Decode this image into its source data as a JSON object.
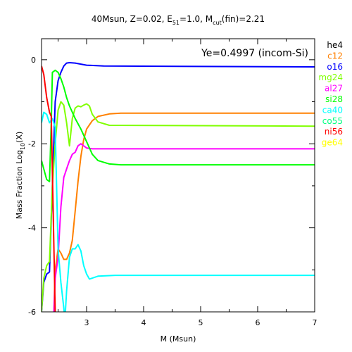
{
  "chart_data": {
    "type": "line",
    "title": {
      "base": "40Msun, Z=0.02, E",
      "sub1": "51",
      "mid": "=1.0, M",
      "sub2": "cut",
      "end": "(fin)=2.21"
    },
    "xlabel": "M (Msun)",
    "ylabel": {
      "base": "Mass Fraction Log",
      "sub": "10",
      "end": "(X)"
    },
    "annotation": "Ye=0.4997 (incom-Si)",
    "xlim": [
      2.21,
      7
    ],
    "ylim": [
      -6,
      0.5
    ],
    "x_ticks": [
      3,
      4,
      5,
      6,
      7
    ],
    "y_ticks": [
      0,
      -2,
      -4,
      -6
    ],
    "legend_position": "right-outside",
    "series": [
      {
        "name": "he4",
        "color": "#000000",
        "points": []
      },
      {
        "name": "c12",
        "color": "#ff8000",
        "points": [
          [
            2.4,
            -7.0
          ],
          [
            2.45,
            -5.0
          ],
          [
            2.5,
            -4.5
          ],
          [
            2.55,
            -4.6
          ],
          [
            2.6,
            -4.75
          ],
          [
            2.65,
            -4.75
          ],
          [
            2.7,
            -4.6
          ],
          [
            2.75,
            -4.3
          ],
          [
            2.8,
            -3.6
          ],
          [
            2.85,
            -2.9
          ],
          [
            2.9,
            -2.3
          ],
          [
            2.95,
            -1.9
          ],
          [
            3.0,
            -1.65
          ],
          [
            3.1,
            -1.45
          ],
          [
            3.2,
            -1.35
          ],
          [
            3.4,
            -1.29
          ],
          [
            3.6,
            -1.27
          ],
          [
            7.0,
            -1.27
          ]
        ]
      },
      {
        "name": "o16",
        "color": "#0000ff",
        "points": [
          [
            2.21,
            -6.0
          ],
          [
            2.25,
            -5.3
          ],
          [
            2.3,
            -5.1
          ],
          [
            2.35,
            -5.05
          ],
          [
            2.4,
            -3.0
          ],
          [
            2.45,
            -1.0
          ],
          [
            2.5,
            -0.5
          ],
          [
            2.55,
            -0.3
          ],
          [
            2.6,
            -0.15
          ],
          [
            2.65,
            -0.08
          ],
          [
            2.7,
            -0.07
          ],
          [
            2.8,
            -0.08
          ],
          [
            3.0,
            -0.13
          ],
          [
            3.3,
            -0.15
          ],
          [
            7.0,
            -0.17
          ]
        ]
      },
      {
        "name": "mg24",
        "color": "#80ff00",
        "points": [
          [
            2.21,
            -6.0
          ],
          [
            2.25,
            -5.2
          ],
          [
            2.3,
            -4.9
          ],
          [
            2.35,
            -4.8
          ],
          [
            2.4,
            -3.0
          ],
          [
            2.45,
            -2.0
          ],
          [
            2.5,
            -1.2
          ],
          [
            2.55,
            -1.0
          ],
          [
            2.6,
            -1.08
          ],
          [
            2.65,
            -1.5
          ],
          [
            2.7,
            -2.05
          ],
          [
            2.75,
            -1.4
          ],
          [
            2.8,
            -1.15
          ],
          [
            2.85,
            -1.1
          ],
          [
            2.9,
            -1.12
          ],
          [
            2.95,
            -1.08
          ],
          [
            3.0,
            -1.05
          ],
          [
            3.05,
            -1.1
          ],
          [
            3.1,
            -1.3
          ],
          [
            3.2,
            -1.48
          ],
          [
            3.4,
            -1.56
          ],
          [
            7.0,
            -1.58
          ]
        ]
      },
      {
        "name": "al27",
        "color": "#ff00ff",
        "points": [
          [
            2.4,
            -7.0
          ],
          [
            2.45,
            -5.2
          ],
          [
            2.5,
            -4.7
          ],
          [
            2.55,
            -3.5
          ],
          [
            2.6,
            -2.8
          ],
          [
            2.65,
            -2.6
          ],
          [
            2.7,
            -2.4
          ],
          [
            2.75,
            -2.25
          ],
          [
            2.8,
            -2.2
          ],
          [
            2.85,
            -2.05
          ],
          [
            2.9,
            -2.0
          ],
          [
            2.95,
            -2.05
          ],
          [
            3.0,
            -2.1
          ],
          [
            3.1,
            -2.12
          ],
          [
            7.0,
            -2.12
          ]
        ]
      },
      {
        "name": "si28",
        "color": "#00ff00",
        "points": [
          [
            2.21,
            -2.4
          ],
          [
            2.25,
            -2.6
          ],
          [
            2.3,
            -2.85
          ],
          [
            2.35,
            -2.9
          ],
          [
            2.38,
            -1.5
          ],
          [
            2.4,
            -0.3
          ],
          [
            2.45,
            -0.25
          ],
          [
            2.5,
            -0.3
          ],
          [
            2.55,
            -0.45
          ],
          [
            2.6,
            -0.65
          ],
          [
            2.65,
            -0.9
          ],
          [
            2.7,
            -1.1
          ],
          [
            2.8,
            -1.4
          ],
          [
            2.9,
            -1.65
          ],
          [
            3.0,
            -1.95
          ],
          [
            3.1,
            -2.25
          ],
          [
            3.2,
            -2.4
          ],
          [
            3.4,
            -2.48
          ],
          [
            3.6,
            -2.5
          ],
          [
            7.0,
            -2.5
          ]
        ]
      },
      {
        "name": "ca40",
        "color": "#00ffff",
        "points": [
          [
            2.21,
            -1.5
          ],
          [
            2.25,
            -1.25
          ],
          [
            2.3,
            -1.3
          ],
          [
            2.35,
            -1.5
          ],
          [
            2.4,
            -1.4
          ],
          [
            2.45,
            -1.6
          ],
          [
            2.5,
            -4.5
          ],
          [
            2.55,
            -5.3
          ],
          [
            2.6,
            -5.9
          ],
          [
            2.62,
            -6.2
          ],
          [
            2.65,
            -5.5
          ],
          [
            2.7,
            -4.7
          ],
          [
            2.75,
            -4.5
          ],
          [
            2.8,
            -4.5
          ],
          [
            2.85,
            -4.4
          ],
          [
            2.9,
            -4.55
          ],
          [
            2.95,
            -4.9
          ],
          [
            3.0,
            -5.1
          ],
          [
            3.05,
            -5.22
          ],
          [
            3.2,
            -5.15
          ],
          [
            3.5,
            -5.13
          ],
          [
            7.0,
            -5.13
          ]
        ]
      },
      {
        "name": "co55",
        "color": "#00ff80",
        "points": []
      },
      {
        "name": "ni56",
        "color": "#ff0000",
        "points": [
          [
            2.21,
            -0.15
          ],
          [
            2.25,
            -0.35
          ],
          [
            2.3,
            -0.9
          ],
          [
            2.35,
            -1.25
          ],
          [
            2.38,
            -1.35
          ],
          [
            2.42,
            -4.0
          ],
          [
            2.45,
            -6.0
          ],
          [
            2.47,
            -6.5
          ]
        ]
      },
      {
        "name": "ge64",
        "color": "#ffff00",
        "points": []
      }
    ]
  }
}
